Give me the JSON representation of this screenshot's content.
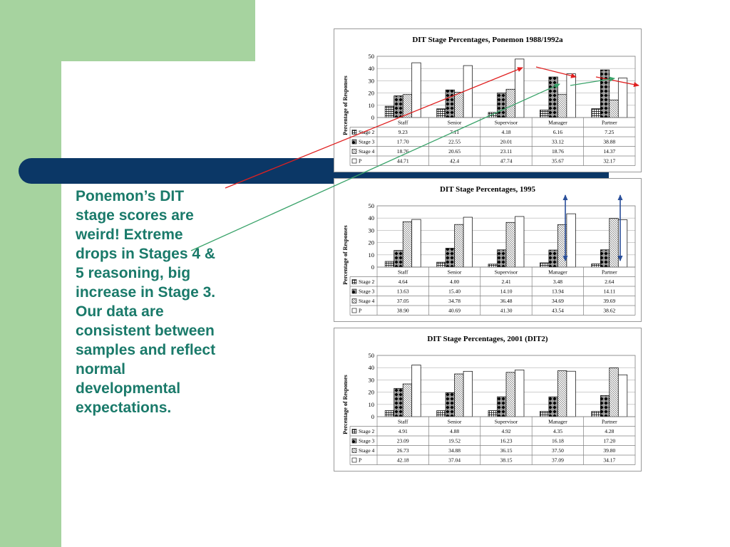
{
  "slide": {
    "text_lines": [
      "Ponemon’s DIT stage scores are weird! Extreme drops in Stages 4 & 5 reasoning, big increase in Stage 3.",
      "Our data are consistent between samples and reflect normal developmental expectations."
    ]
  },
  "colors": {
    "green_decoration": "#a6d39f",
    "band": "#0b3766",
    "text": "#1a7a6a",
    "red_arrow": "#e02020",
    "green_arrow": "#3aa36a",
    "blue_arrow": "#2a4f9a"
  },
  "chart_data": [
    {
      "type": "bar",
      "title": "DIT Stage Percentages, Ponemon 1988/1992a",
      "ylabel": "Percentage of Responses",
      "ylim": [
        0,
        50
      ],
      "yticks": [
        "0",
        "10",
        "20",
        "30",
        "40",
        "50"
      ],
      "categories": [
        "Staff",
        "Senior",
        "Supervisor",
        "Manager",
        "Partner"
      ],
      "series": [
        {
          "name": "Stage 2",
          "values": [
            9.23,
            7.11,
            4.18,
            6.16,
            7.25
          ],
          "display": [
            "9.23",
            "7.11",
            "4.18",
            "6.16",
            "7.25"
          ],
          "pattern": "grid"
        },
        {
          "name": "Stage 3",
          "values": [
            17.7,
            22.55,
            20.01,
            33.12,
            38.88
          ],
          "display": [
            "17.70",
            "22.55",
            "20.01",
            "33.12",
            "38.88"
          ],
          "pattern": "diamond"
        },
        {
          "name": "Stage 4",
          "values": [
            18.76,
            20.65,
            23.11,
            18.76,
            14.37
          ],
          "display": [
            "18.76",
            "20.65",
            "23.11",
            "18.76",
            "14.37"
          ],
          "pattern": "hatch"
        },
        {
          "name": "P",
          "values": [
            44.71,
            42.4,
            47.74,
            35.67,
            32.17
          ],
          "display": [
            "44.71",
            "42.4",
            "47.74",
            "35.67",
            "32.17"
          ],
          "pattern": "white"
        }
      ]
    },
    {
      "type": "bar",
      "title": "DIT Stage Percentages, 1995",
      "ylabel": "Percentage of Responses",
      "ylim": [
        0,
        50
      ],
      "yticks": [
        "0",
        "10",
        "20",
        "30",
        "40",
        "50"
      ],
      "categories": [
        "Staff",
        "Senior",
        "Supervisor",
        "Manager",
        "Partner"
      ],
      "series": [
        {
          "name": "Stage 2",
          "values": [
            4.64,
            4.0,
            2.41,
            3.48,
            2.64
          ],
          "display": [
            "4.64",
            "4.00",
            "2.41",
            "3.48",
            "2.64"
          ],
          "pattern": "grid"
        },
        {
          "name": "Stage 3",
          "values": [
            13.63,
            15.4,
            14.1,
            13.94,
            14.11
          ],
          "display": [
            "13.63",
            "15.40",
            "14.10",
            "13.94",
            "14.11"
          ],
          "pattern": "diamond"
        },
        {
          "name": "Stage 4",
          "values": [
            37.05,
            34.78,
            36.48,
            34.69,
            39.69
          ],
          "display": [
            "37.05",
            "34.78",
            "36.48",
            "34.69",
            "39.69"
          ],
          "pattern": "hatch"
        },
        {
          "name": "P",
          "values": [
            38.9,
            40.69,
            41.3,
            43.54,
            38.62
          ],
          "display": [
            "38.90",
            "40.69",
            "41.30",
            "43.54",
            "38.62"
          ],
          "pattern": "white"
        }
      ]
    },
    {
      "type": "bar",
      "title": "DIT Stage Percentages, 2001 (DIT2)",
      "ylabel": "Percentage of Responses",
      "ylim": [
        0,
        50
      ],
      "yticks": [
        "0",
        "10",
        "20",
        "30",
        "40",
        "50"
      ],
      "categories": [
        "Staff",
        "Senior",
        "Supervisor",
        "Manager",
        "Partner"
      ],
      "series": [
        {
          "name": "Stage 2",
          "values": [
            4.91,
            4.88,
            4.92,
            4.35,
            4.28
          ],
          "display": [
            "4.91",
            "4.88",
            "4.92",
            "4.35",
            "4.28"
          ],
          "pattern": "grid"
        },
        {
          "name": "Stage 3",
          "values": [
            23.09,
            19.52,
            16.23,
            16.18,
            17.2
          ],
          "display": [
            "23.09",
            "19.52",
            "16.23",
            "16.18",
            "17.20"
          ],
          "pattern": "diamond"
        },
        {
          "name": "Stage 4",
          "values": [
            26.73,
            34.88,
            36.15,
            37.5,
            39.8
          ],
          "display": [
            "26.73",
            "34.88",
            "36.15",
            "37.50",
            "39.80"
          ],
          "pattern": "hatch"
        },
        {
          "name": "P",
          "values": [
            42.18,
            37.04,
            38.15,
            37.09,
            34.17
          ],
          "display": [
            "42.18",
            "37.04",
            "38.15",
            "37.09",
            "34.17"
          ],
          "pattern": "white"
        }
      ]
    }
  ]
}
